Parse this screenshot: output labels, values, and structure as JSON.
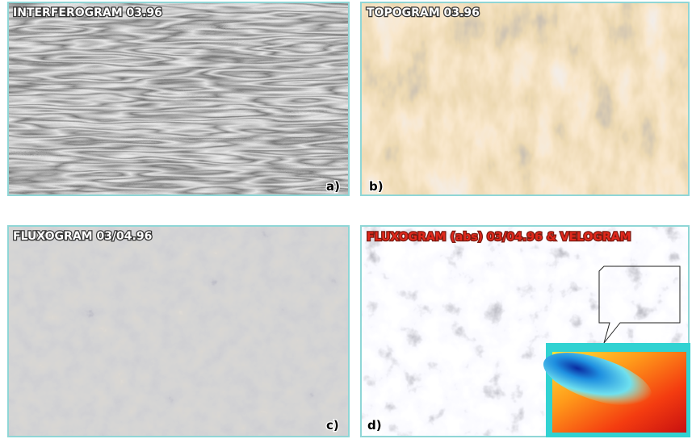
{
  "panels": [
    {
      "title": "INTERFEROGRAM 03.96",
      "label": "a)"
    },
    {
      "title": "TOPOGRAM 03.96",
      "label": "b)"
    },
    {
      "title": "FLUXOGRAM 03/04.96",
      "label": "c)"
    },
    {
      "title": "FLUXOGRAM (abs) 03/04.96 & VELOGRAM",
      "label": "d)"
    }
  ]
}
